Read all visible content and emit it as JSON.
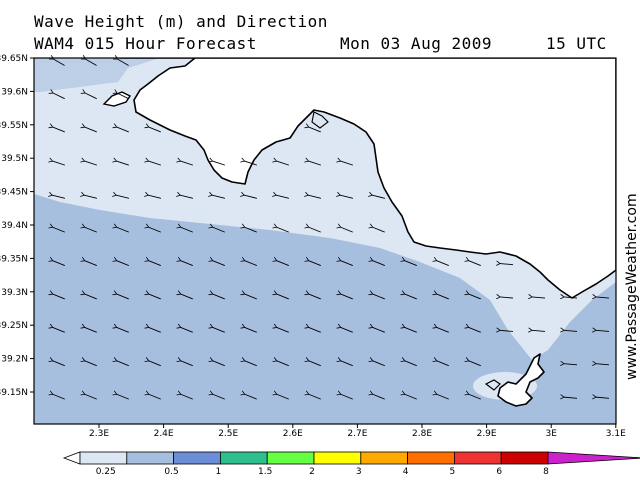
{
  "header": {
    "line1": "Wave Height (m) and Direction",
    "line2": "WAM4 015 Hour Forecast",
    "date": "Mon 03 Aug 2009",
    "time": "15 UTC"
  },
  "map": {
    "lat_labels": [
      "39.65N",
      "39.6N",
      "39.55N",
      "39.5N",
      "39.45N",
      "39.4N",
      "39.35N",
      "39.3N",
      "39.25N",
      "39.2N",
      "39.15N"
    ],
    "lon_labels": [
      "2.3E",
      "2.4E",
      "2.5E",
      "2.6E",
      "2.7E",
      "2.8E",
      "2.9E",
      "3E",
      "3.1E"
    ],
    "lat_range": [
      39.1,
      39.65
    ],
    "lon_range": [
      2.2,
      3.1
    ],
    "colors": {
      "land": "#ffffff",
      "sea_025": "#dde6f3",
      "sea_05": "#a7bfde",
      "coast": "#000000"
    }
  },
  "legend": {
    "labels": [
      "0.25",
      "0.5",
      "1",
      "1.5",
      "2",
      "3",
      "4",
      "5",
      "6",
      "8"
    ],
    "colors": [
      "#ffffff",
      "#dde6f3",
      "#a7bfde",
      "#6b8ed6",
      "#2fbf8f",
      "#66ff44",
      "#ffff00",
      "#ffaa00",
      "#ff6f00",
      "#ee3333",
      "#cc0000",
      "#cc22cc"
    ]
  },
  "watermark": "www.PassageWeather.com"
}
